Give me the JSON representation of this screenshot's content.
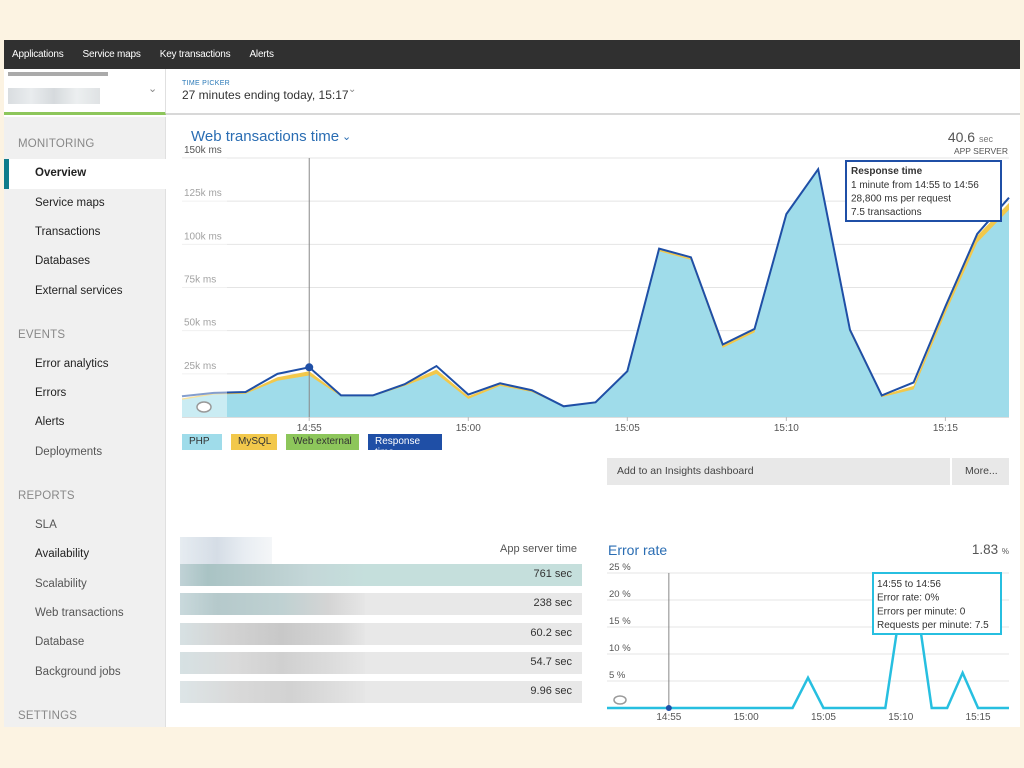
{
  "topnav": {
    "items": [
      "Applications",
      "Service maps",
      "Key transactions",
      "Alerts"
    ]
  },
  "time_picker": {
    "label": "TIME PICKER",
    "value": "27 minutes ending today, 15:17"
  },
  "sidebar": {
    "sections": [
      {
        "title": "MONITORING",
        "items": [
          "Overview",
          "Service maps",
          "Transactions",
          "Databases",
          "External services"
        ]
      },
      {
        "title": "EVENTS",
        "items": [
          "Error analytics",
          "Errors",
          "Alerts",
          "Deployments"
        ]
      },
      {
        "title": "REPORTS",
        "items": [
          "SLA",
          "Availability",
          "Scalability",
          "Web transactions",
          "Database",
          "Background jobs"
        ]
      },
      {
        "title": "SETTINGS",
        "items": []
      }
    ],
    "active": "Overview"
  },
  "web_chart": {
    "title": "Web transactions time",
    "stat_value": "40.6",
    "stat_unit": "sec",
    "stat_label": "APP SERVER",
    "tooltip": {
      "title": "Response time",
      "lines": [
        "1 minute from 14:55 to 14:56",
        "28,800 ms per request",
        "7.5 transactions"
      ]
    },
    "insights_label": "Add to an Insights dashboard",
    "more_label": "More..."
  },
  "table": {
    "header": "App server time",
    "values": [
      "761 sec",
      "238 sec",
      "60.2 sec",
      "54.7 sec",
      "9.96 sec"
    ]
  },
  "error_chart": {
    "title": "Error rate",
    "stat_value": "1.83",
    "stat_unit": "%",
    "tooltip_lines": [
      "14:55 to 14:56",
      "Error rate: 0%",
      "Errors per minute: 0",
      "Requests per minute: 7.5"
    ]
  },
  "colors": {
    "php": "#9fdcea",
    "mysql": "#f2c84b",
    "web_external": "#8dc65b",
    "response_time": "#1f4fa6",
    "error_line": "#27bfe0",
    "accent": "#2a6db3",
    "active_bar": "#0f7c8c"
  },
  "chart_data": [
    {
      "type": "area",
      "title": "Web transactions time",
      "x": [
        "14:51",
        "14:52",
        "14:53",
        "14:54",
        "14:55",
        "14:56",
        "14:57",
        "14:58",
        "14:59",
        "15:00",
        "15:01",
        "15:02",
        "15:03",
        "15:04",
        "15:05",
        "15:06",
        "15:07",
        "15:08",
        "15:09",
        "15:10",
        "15:11",
        "15:12",
        "15:13",
        "15:14",
        "15:15",
        "15:16",
        "15:17"
      ],
      "x_ticks": [
        "14:55",
        "15:00",
        "15:05",
        "15:10",
        "15:15"
      ],
      "y_ticks": [
        "25k ms",
        "50k ms",
        "75k ms",
        "100k ms",
        "125k ms",
        "150k ms"
      ],
      "ylim": [
        0,
        150000
      ],
      "series": [
        {
          "name": "PHP",
          "values": [
            10000,
            13000,
            13500,
            21000,
            24000,
            12000,
            12000,
            18000,
            25000,
            10500,
            18000,
            14500,
            6000,
            8000,
            26000,
            96000,
            91000,
            40000,
            49000,
            117000,
            143000,
            49000,
            11500,
            16000,
            60000,
            101000,
            120000
          ]
        },
        {
          "name": "MySQL",
          "values": [
            800,
            800,
            800,
            2000,
            2500,
            500,
            500,
            1200,
            2500,
            1500,
            1200,
            800,
            200,
            300,
            400,
            1000,
            900,
            1800,
            1600,
            600,
            800,
            1000,
            1000,
            2000,
            3000,
            4000,
            4000
          ]
        },
        {
          "name": "Web external",
          "values": [
            0,
            0,
            0,
            0,
            0,
            0,
            0,
            0,
            0,
            0,
            0,
            0,
            0,
            0,
            0,
            0,
            0,
            0,
            0,
            0,
            0,
            0,
            0,
            0,
            0,
            0,
            0
          ]
        },
        {
          "name": "Response time",
          "values": [
            12000,
            14000,
            14500,
            25000,
            28800,
            12500,
            12500,
            19000,
            29500,
            13000,
            19500,
            15500,
            6200,
            8500,
            26500,
            97500,
            92500,
            42000,
            51000,
            117500,
            143500,
            50500,
            12500,
            20000,
            64000,
            106000,
            127000
          ]
        }
      ]
    },
    {
      "type": "line",
      "title": "Error rate",
      "x": [
        "14:51",
        "14:52",
        "14:53",
        "14:54",
        "14:55",
        "14:56",
        "14:57",
        "14:58",
        "14:59",
        "15:00",
        "15:01",
        "15:02",
        "15:03",
        "15:04",
        "15:05",
        "15:06",
        "15:07",
        "15:08",
        "15:09",
        "15:10",
        "15:11",
        "15:12",
        "15:13",
        "15:14",
        "15:15",
        "15:16",
        "15:17"
      ],
      "x_ticks": [
        "14:55",
        "15:00",
        "15:05",
        "15:10",
        "15:15"
      ],
      "y_ticks": [
        "5 %",
        "10 %",
        "15 %",
        "20 %",
        "25 %"
      ],
      "ylim": [
        0,
        25
      ],
      "series": [
        {
          "name": "Error rate",
          "values": [
            0,
            0,
            0,
            0,
            0,
            0,
            0,
            0,
            0,
            0,
            0,
            0,
            0,
            5.6,
            0,
            0,
            0,
            0,
            0,
            19,
            20,
            0,
            0,
            6.5,
            0,
            0,
            0
          ]
        }
      ]
    }
  ]
}
